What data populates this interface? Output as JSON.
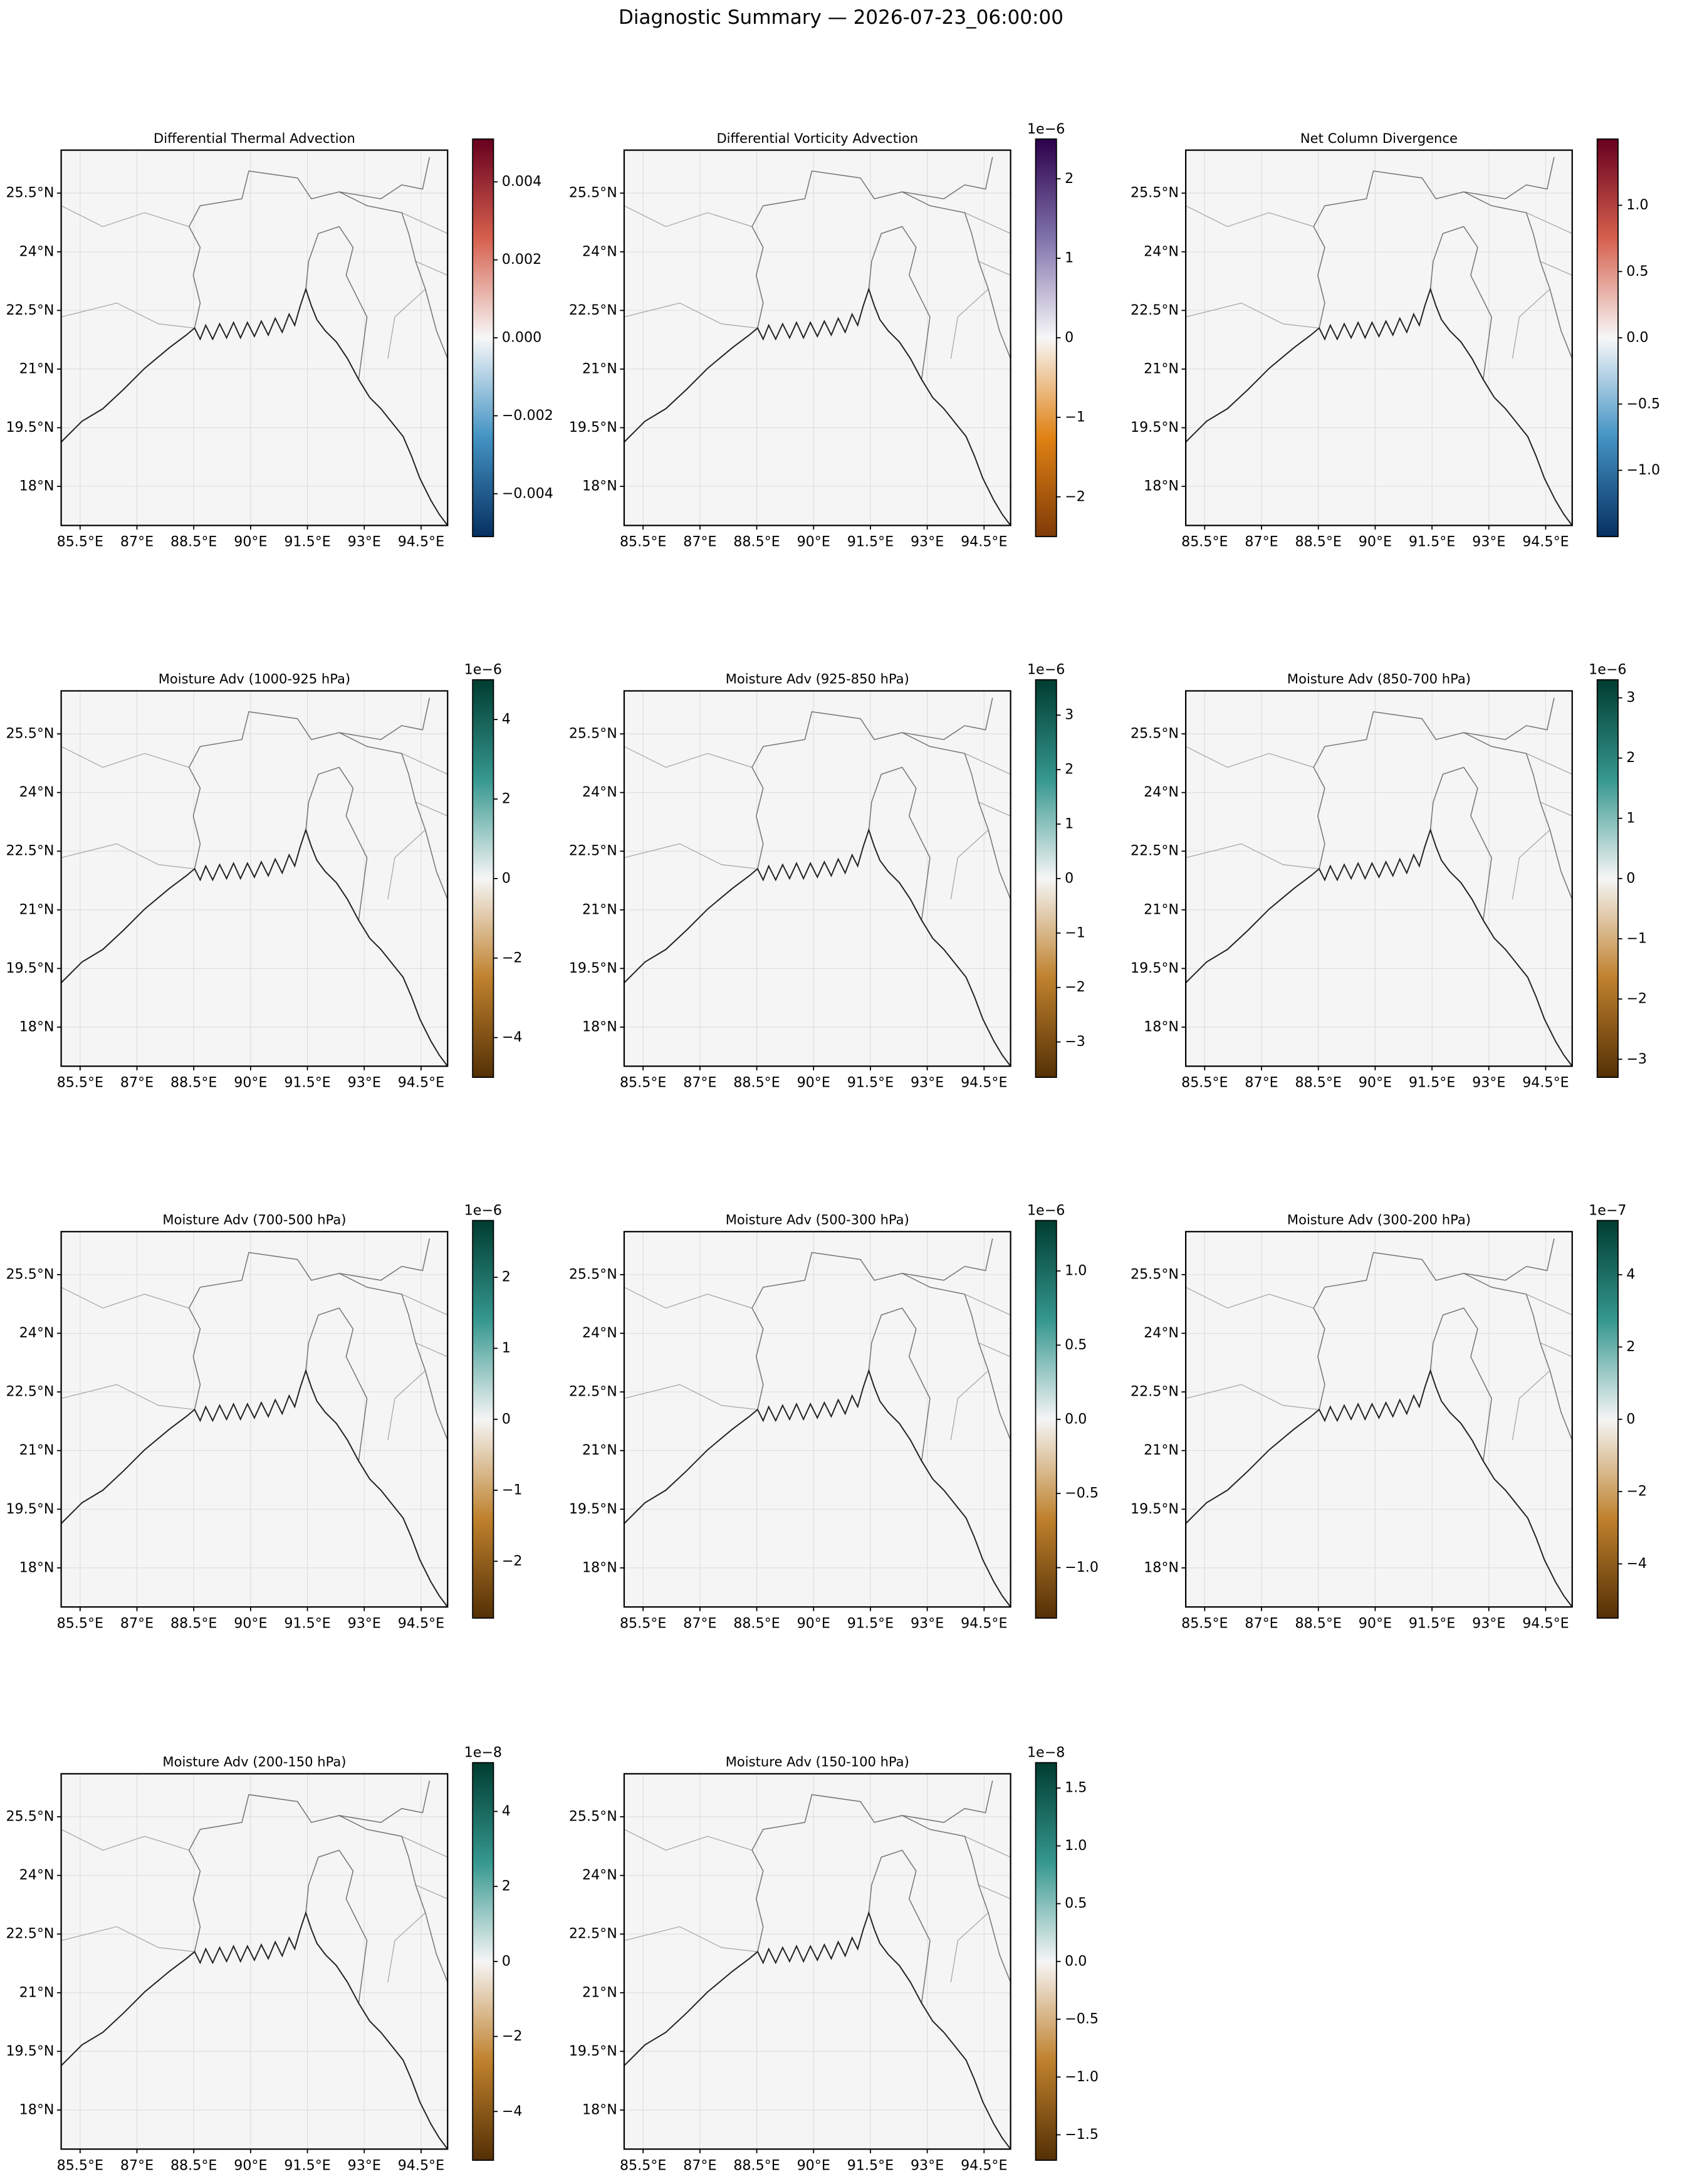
{
  "chart_data": {
    "type": "map",
    "title": "Diagnostic Summary — 2026-07-23_06:00:00",
    "xlim": [
      85,
      95.2
    ],
    "ylim": [
      17,
      26.6
    ],
    "xticks": [
      {
        "value": 85.5,
        "label": "85.5°E"
      },
      {
        "value": 87,
        "label": "87°E"
      },
      {
        "value": 88.5,
        "label": "88.5°E"
      },
      {
        "value": 90,
        "label": "90°E"
      },
      {
        "value": 91.5,
        "label": "91.5°E"
      },
      {
        "value": 93,
        "label": "93°E"
      },
      {
        "value": 94.5,
        "label": "94.5°E"
      }
    ],
    "yticks": [
      {
        "value": 18,
        "label": "18°N"
      },
      {
        "value": 19.5,
        "label": "19.5°N"
      },
      {
        "value": 21,
        "label": "21°N"
      },
      {
        "value": 22.5,
        "label": "22.5°N"
      },
      {
        "value": 24,
        "label": "24°N"
      },
      {
        "value": 25.5,
        "label": "25.5°N"
      }
    ],
    "grid": true,
    "panels": [
      {
        "title": "Differential Thermal Advection",
        "clim": [
          -0.0051,
          0.0051
        ],
        "colors": [
          "#053061",
          "#4393c3",
          "#f7f7f7",
          "#d6604d",
          "#67001f"
        ],
        "cticks": [
          {
            "value": -0.004,
            "label": "−0.004"
          },
          {
            "value": -0.002,
            "label": "−0.002"
          },
          {
            "value": 0,
            "label": "0.000"
          },
          {
            "value": 0.002,
            "label": "0.002"
          },
          {
            "value": 0.004,
            "label": "0.004"
          }
        ]
      },
      {
        "title": "Differential Vorticity Advection",
        "offset": "1e−6",
        "clim": [
          -2.5,
          2.5
        ],
        "colors": [
          "#7f3b08",
          "#e08214",
          "#f7f7f7",
          "#8073ac",
          "#2d004b"
        ],
        "cticks": [
          {
            "value": -2,
            "label": "−2"
          },
          {
            "value": -1,
            "label": "−1"
          },
          0,
          1,
          2
        ]
      },
      {
        "title": "Net Column Divergence",
        "clim": [
          -1.5,
          1.5
        ],
        "colors": [
          "#053061",
          "#4393c3",
          "#f7f7f7",
          "#d6604d",
          "#67001f"
        ],
        "cticks": [
          {
            "value": -1,
            "label": "−1.0"
          },
          {
            "value": -0.5,
            "label": "−0.5"
          },
          {
            "value": 0,
            "label": "0.0"
          },
          0.5,
          {
            "value": 1,
            "label": "1.0"
          }
        ]
      },
      {
        "title": "Moisture Adv (1000-925 hPa)",
        "offset": "1e−6",
        "clim": [
          -5,
          5
        ],
        "colors": [
          "#543005",
          "#bf812d",
          "#f5f5f5",
          "#35978f",
          "#003c30"
        ],
        "cticks": [
          {
            "value": -4,
            "label": "−4"
          },
          {
            "value": -2,
            "label": "−2"
          },
          0,
          2,
          4
        ]
      },
      {
        "title": "Moisture Adv (925-850 hPa)",
        "offset": "1e−6",
        "clim": [
          -3.65,
          3.65
        ],
        "colors": [
          "#543005",
          "#bf812d",
          "#f5f5f5",
          "#35978f",
          "#003c30"
        ],
        "cticks": [
          {
            "value": -3,
            "label": "−3"
          },
          {
            "value": -2,
            "label": "−2"
          },
          {
            "value": -1,
            "label": "−1"
          },
          0,
          1,
          2,
          3
        ]
      },
      {
        "title": "Moisture Adv (850-700 hPa)",
        "offset": "1e−6",
        "clim": [
          -3.3,
          3.3
        ],
        "colors": [
          "#543005",
          "#bf812d",
          "#f5f5f5",
          "#35978f",
          "#003c30"
        ],
        "cticks": [
          {
            "value": -3,
            "label": "−3"
          },
          {
            "value": -2,
            "label": "−2"
          },
          {
            "value": -1,
            "label": "−1"
          },
          0,
          1,
          2,
          3
        ]
      },
      {
        "title": "Moisture Adv (700-500 hPa)",
        "offset": "1e−6",
        "clim": [
          -2.8,
          2.8
        ],
        "colors": [
          "#543005",
          "#bf812d",
          "#f5f5f5",
          "#35978f",
          "#003c30"
        ],
        "cticks": [
          {
            "value": -2,
            "label": "−2"
          },
          {
            "value": -1,
            "label": "−1"
          },
          0,
          1,
          2
        ]
      },
      {
        "title": "Moisture Adv (500-300 hPa)",
        "offset": "1e−6",
        "clim": [
          -1.34,
          1.34
        ],
        "colors": [
          "#543005",
          "#bf812d",
          "#f5f5f5",
          "#35978f",
          "#003c30"
        ],
        "cticks": [
          {
            "value": -1,
            "label": "−1.0"
          },
          {
            "value": -0.5,
            "label": "−0.5"
          },
          {
            "value": 0,
            "label": "0.0"
          },
          0.5,
          {
            "value": 1,
            "label": "1.0"
          }
        ]
      },
      {
        "title": "Moisture Adv (300-200 hPa)",
        "offset": "1e−7",
        "clim": [
          -5.5,
          5.5
        ],
        "colors": [
          "#543005",
          "#bf812d",
          "#f5f5f5",
          "#35978f",
          "#003c30"
        ],
        "cticks": [
          {
            "value": -4,
            "label": "−4"
          },
          {
            "value": -2,
            "label": "−2"
          },
          0,
          2,
          4
        ]
      },
      {
        "title": "Moisture Adv (200-150 hPa)",
        "offset": "1e−8",
        "clim": [
          -5.3,
          5.3
        ],
        "colors": [
          "#543005",
          "#bf812d",
          "#f5f5f5",
          "#35978f",
          "#003c30"
        ],
        "cticks": [
          {
            "value": -4,
            "label": "−4"
          },
          {
            "value": -2,
            "label": "−2"
          },
          0,
          2,
          4
        ]
      },
      {
        "title": "Moisture Adv (150-100 hPa)",
        "offset": "1e−8",
        "clim": [
          -1.72,
          1.72
        ],
        "colors": [
          "#543005",
          "#bf812d",
          "#f5f5f5",
          "#35978f",
          "#003c30"
        ],
        "cticks": [
          {
            "value": -1.5,
            "label": "−1.5"
          },
          {
            "value": -1,
            "label": "−1.0"
          },
          {
            "value": -0.5,
            "label": "−0.5"
          },
          {
            "value": 0,
            "label": "0.0"
          },
          0.5,
          {
            "value": 1,
            "label": "1.0"
          },
          1.5
        ]
      }
    ]
  }
}
